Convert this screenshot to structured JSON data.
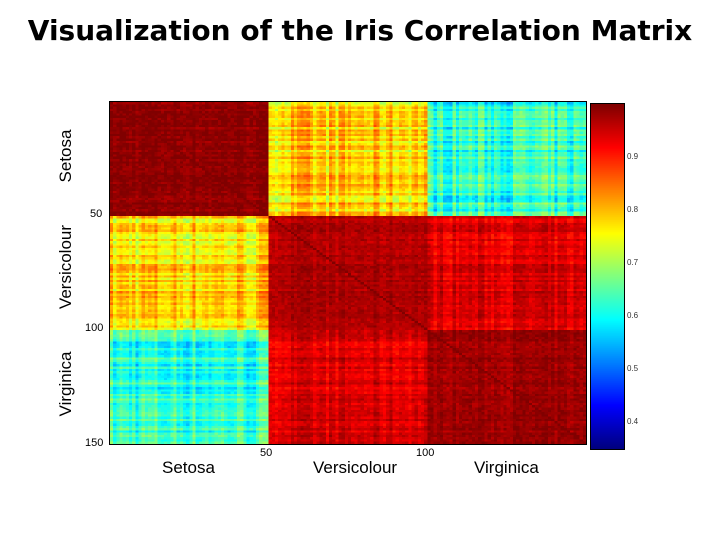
{
  "slide": {
    "title": "Visualization of the Iris Correlation Matrix"
  },
  "chart_data": {
    "type": "heatmap",
    "title": "Visualization of the Iris Correlation Matrix",
    "x_tick_labels": [
      "50",
      "100"
    ],
    "y_tick_labels": [
      "50",
      "100",
      "150"
    ],
    "x_group_labels": [
      "Setosa",
      "Versicolour",
      "Virginica"
    ],
    "y_group_labels": [
      "Setosa",
      "Versicolour",
      "Virginica"
    ],
    "x_range": [
      1,
      150
    ],
    "y_range": [
      1,
      150
    ],
    "matrix_size": 150,
    "block_size": 50,
    "block_mean_correlation": [
      [
        0.99,
        0.78,
        0.62
      ],
      [
        0.78,
        0.97,
        0.94
      ],
      [
        0.62,
        0.94,
        0.98
      ]
    ],
    "colorbar": {
      "min": 0.35,
      "max": 1.0,
      "tick_labels": [
        "0.9",
        "0.8",
        "0.7",
        "0.6",
        "0.5",
        "0.4"
      ],
      "tick_values": [
        0.9,
        0.8,
        0.7,
        0.6,
        0.5,
        0.4
      ],
      "colormap": "jet"
    }
  }
}
